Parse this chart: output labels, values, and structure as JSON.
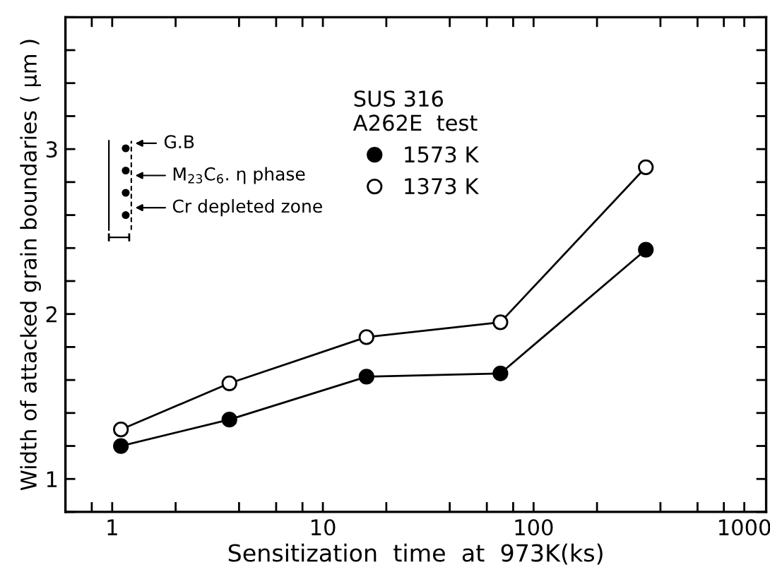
{
  "chart_data": {
    "type": "line",
    "xlabel": "Sensitization  time  at  973K(ks)",
    "ylabel": "Width of attacked grain boundaries ( μm )",
    "legend_title": "SUS 316\nA262E  test",
    "legend": "top",
    "marker": "circle",
    "line_style": "solid",
    "grid": false,
    "log": "x",
    "x": [
      1.1,
      3.6,
      16.1,
      69.6,
      341
    ],
    "series": [
      {
        "name": "1573 K",
        "color": "#000000",
        "values": [
          1.2,
          1.36,
          1.62,
          1.64,
          2.39
        ]
      },
      {
        "name": "1373 K",
        "color": "#ffffff",
        "values": [
          1.3,
          1.58,
          1.86,
          1.95,
          2.89
        ]
      }
    ],
    "xlim": [
      0.6,
      1270
    ],
    "ylim": [
      0.8,
      3.8
    ],
    "xticks": [
      {
        "value": 0.8,
        "label": null
      },
      1,
      {
        "value": 2,
        "label": null
      },
      {
        "value": 4,
        "label": null
      },
      {
        "value": 6,
        "label": null
      },
      {
        "value": 8,
        "label": null
      },
      10,
      {
        "value": 20,
        "label": null
      },
      {
        "value": 40,
        "label": null
      },
      {
        "value": 60,
        "label": null
      },
      {
        "value": 80,
        "label": null
      },
      100,
      {
        "value": 200,
        "label": null
      },
      {
        "value": 400,
        "label": null
      },
      {
        "value": 600,
        "label": null
      },
      {
        "value": 800,
        "label": null
      },
      1000
    ],
    "yticks": [
      {
        "value": 0.8,
        "label": null
      },
      1,
      {
        "value": 1.2,
        "label": null
      },
      {
        "value": 1.4,
        "label": null
      },
      {
        "value": 1.6,
        "label": null
      },
      {
        "value": 1.8,
        "label": null
      },
      2,
      {
        "value": 2.2,
        "label": null
      },
      {
        "value": 2.4,
        "label": null
      },
      {
        "value": 2.6,
        "label": null
      },
      {
        "value": 2.8,
        "label": null
      },
      3,
      {
        "value": 3.2,
        "label": null
      },
      {
        "value": 3.4,
        "label": null
      },
      {
        "value": 3.6,
        "label": null
      },
      {
        "value": 3.8,
        "label": null
      }
    ],
    "annotations": [
      "G.B",
      "M$_{23}$C$_{6}$. η phase",
      "Cr depleted zone"
    ]
  }
}
